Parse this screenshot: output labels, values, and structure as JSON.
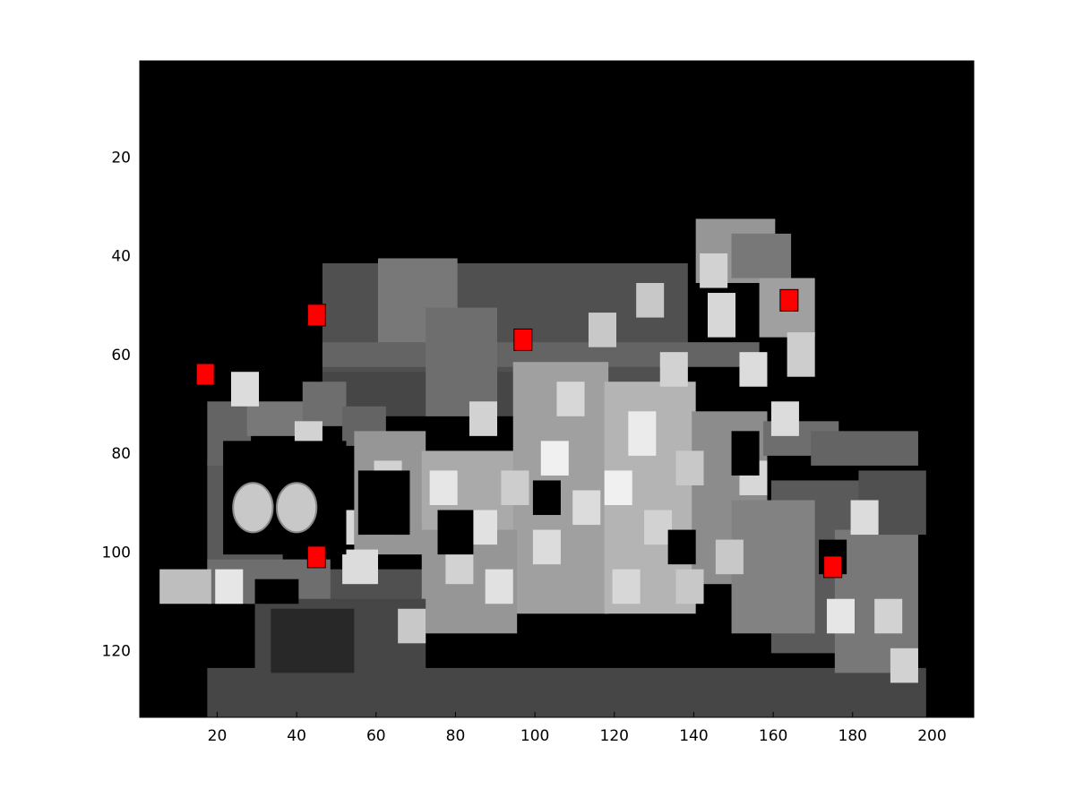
{
  "chart_data": {
    "type": "heatmap",
    "title": "",
    "xlabel": "",
    "ylabel": "",
    "colormap": "gray",
    "background_color": "#000000",
    "marker_color": "#ff0000",
    "xlim": [
      1,
      210
    ],
    "ylim": [
      1,
      133
    ],
    "y_reversed": true,
    "grid": false,
    "legend": "none",
    "xticks": [
      20,
      40,
      60,
      80,
      100,
      120,
      140,
      160,
      180,
      200
    ],
    "yticks": [
      20,
      40,
      60,
      80,
      100,
      120
    ],
    "points": [
      {
        "x": 17,
        "y": 64
      },
      {
        "x": 45,
        "y": 52
      },
      {
        "x": 97,
        "y": 57
      },
      {
        "x": 164,
        "y": 49
      },
      {
        "x": 45,
        "y": 101
      },
      {
        "x": 175,
        "y": 103
      }
    ],
    "image_cells": [
      [
        47,
        42,
        138,
        70,
        80
      ],
      [
        61,
        41,
        80,
        60,
        120
      ],
      [
        47,
        58,
        156,
        62,
        100
      ],
      [
        34,
        63,
        44,
        50,
        90
      ],
      [
        47,
        64,
        108,
        72,
        70
      ],
      [
        73,
        51,
        90,
        72,
        110
      ],
      [
        97,
        45,
        74,
        54,
        130
      ],
      [
        121,
        39,
        78,
        62,
        150
      ],
      [
        126,
        31,
        80,
        44,
        170
      ],
      [
        141,
        33,
        160,
        45,
        150
      ],
      [
        150,
        36,
        164,
        44,
        120
      ],
      [
        157,
        45,
        170,
        56,
        160
      ],
      [
        18,
        82,
        36,
        105,
        90
      ],
      [
        18,
        70,
        28,
        82,
        100
      ],
      [
        28,
        70,
        44,
        76,
        120
      ],
      [
        42,
        66,
        52,
        74,
        110
      ],
      [
        52,
        71,
        62,
        78,
        100
      ],
      [
        28,
        104,
        76,
        110,
        80
      ],
      [
        18,
        102,
        48,
        110,
        110
      ],
      [
        6,
        104,
        18,
        110,
        190
      ],
      [
        55,
        76,
        72,
        100,
        150
      ],
      [
        72,
        80,
        95,
        96,
        170
      ],
      [
        95,
        62,
        118,
        112,
        160
      ],
      [
        118,
        66,
        140,
        112,
        180
      ],
      [
        140,
        72,
        158,
        106,
        140
      ],
      [
        72,
        96,
        95,
        116,
        150
      ],
      [
        30,
        110,
        72,
        124,
        70
      ],
      [
        34,
        112,
        54,
        124,
        40
      ],
      [
        158,
        74,
        176,
        80,
        110
      ],
      [
        170,
        76,
        196,
        82,
        100
      ],
      [
        160,
        86,
        192,
        120,
        90
      ],
      [
        176,
        96,
        196,
        124,
        120
      ],
      [
        182,
        84,
        198,
        96,
        80
      ],
      [
        150,
        90,
        170,
        116,
        130
      ]
    ],
    "bright_cells": [
      [
        28,
        85,
        38,
        96,
        200
      ],
      [
        38,
        85,
        48,
        96,
        190
      ],
      [
        52,
        100,
        60,
        106,
        220
      ],
      [
        74,
        84,
        80,
        90,
        230
      ],
      [
        84,
        70,
        90,
        76,
        210
      ],
      [
        102,
        78,
        108,
        84,
        240
      ],
      [
        110,
        88,
        116,
        94,
        220
      ],
      [
        124,
        72,
        130,
        80,
        235
      ],
      [
        128,
        92,
        134,
        98,
        210
      ],
      [
        136,
        80,
        142,
        86,
        200
      ],
      [
        144,
        48,
        150,
        56,
        215
      ],
      [
        152,
        60,
        158,
        66,
        220
      ],
      [
        164,
        56,
        170,
        64,
        205
      ],
      [
        60,
        82,
        66,
        88,
        210
      ],
      [
        88,
        104,
        94,
        110,
        225
      ],
      [
        120,
        104,
        126,
        110,
        215
      ],
      [
        146,
        98,
        152,
        104,
        200
      ],
      [
        180,
        90,
        186,
        96,
        220
      ],
      [
        186,
        110,
        192,
        116,
        210
      ],
      [
        66,
        112,
        72,
        118,
        200
      ],
      [
        100,
        96,
        106,
        102,
        220
      ],
      [
        132,
        60,
        138,
        66,
        210
      ],
      [
        114,
        52,
        120,
        58,
        200
      ],
      [
        40,
        74,
        46,
        80,
        210
      ],
      [
        24,
        64,
        30,
        70,
        220
      ],
      [
        174,
        110,
        180,
        116,
        230
      ],
      [
        58,
        90,
        64,
        96,
        215
      ],
      [
        92,
        84,
        98,
        90,
        205
      ],
      [
        106,
        66,
        112,
        72,
        215
      ],
      [
        142,
        40,
        148,
        46,
        210
      ],
      [
        20,
        104,
        26,
        110,
        230
      ],
      [
        152,
        82,
        158,
        88,
        215
      ],
      [
        160,
        70,
        166,
        76,
        220
      ],
      [
        78,
        100,
        84,
        106,
        210
      ],
      [
        136,
        104,
        142,
        110,
        200
      ],
      [
        118,
        84,
        124,
        90,
        240
      ],
      [
        126,
        46,
        132,
        52,
        200
      ],
      [
        48,
        92,
        54,
        98,
        215
      ],
      [
        190,
        120,
        196,
        126,
        210
      ],
      [
        84,
        92,
        90,
        98,
        225
      ]
    ],
    "black_holes": [
      [
        22,
        78,
        52,
        100
      ],
      [
        56,
        84,
        68,
        96
      ],
      [
        76,
        92,
        84,
        100
      ],
      [
        100,
        86,
        106,
        92
      ],
      [
        134,
        96,
        140,
        102
      ],
      [
        150,
        76,
        156,
        84
      ],
      [
        172,
        98,
        178,
        104
      ],
      [
        30,
        106,
        40,
        110
      ]
    ],
    "wheel_hubs": [
      {
        "cx": 29,
        "cy": 91,
        "r": 5
      },
      {
        "cx": 40,
        "cy": 91,
        "r": 5
      }
    ],
    "base_band": [
      18,
      124,
      198,
      133,
      70
    ]
  }
}
